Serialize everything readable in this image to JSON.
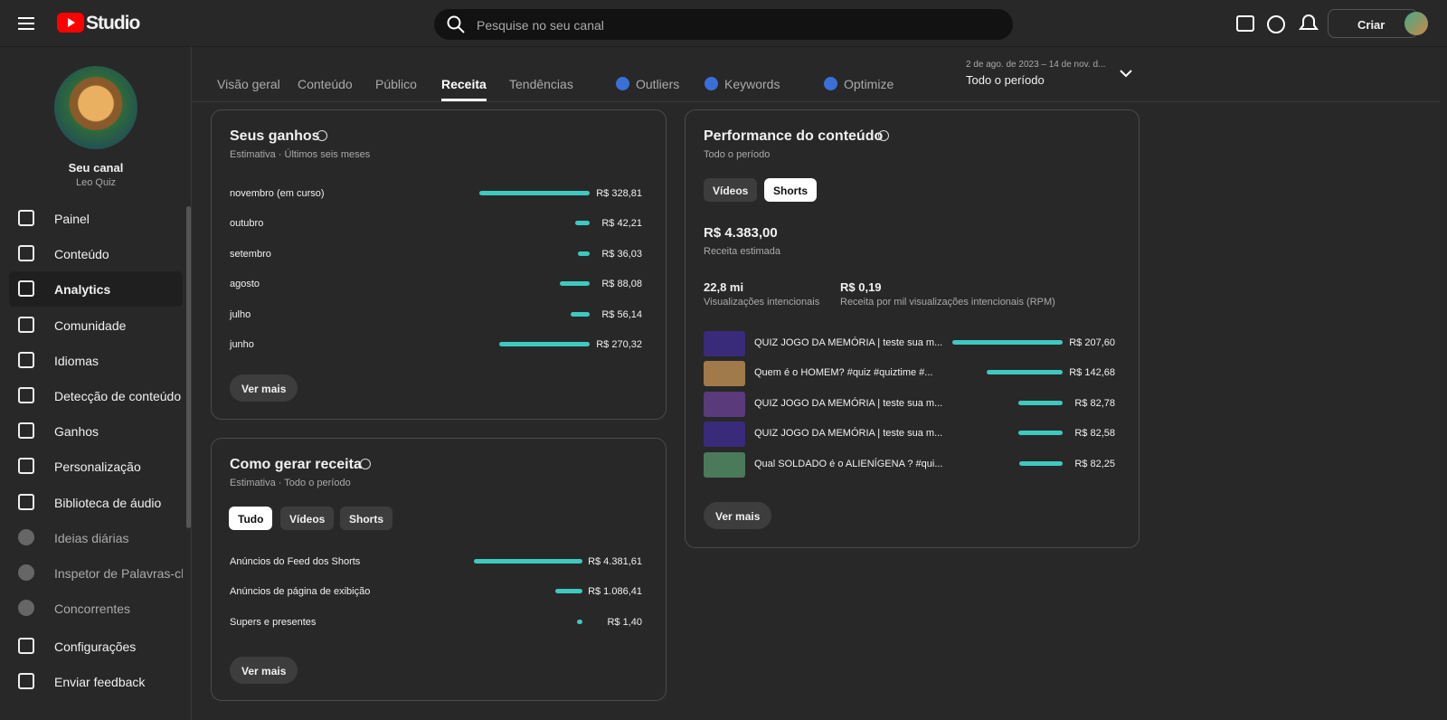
{
  "topbar": {
    "logo": "Studio",
    "search_placeholder": "Pesquise no seu canal",
    "create": "Criar"
  },
  "sidebar": {
    "channel_title": "Seu canal",
    "channel_name": "Leo Quiz",
    "items": [
      "Painel",
      "Conteúdo",
      "Analytics",
      "Comunidade",
      "Idiomas",
      "Detecção de conteúdo",
      "Ganhos",
      "Personalização",
      "Biblioteca de áudio",
      "Ideias diárias",
      "Inspetor de Palavras-chave",
      "Concorrentes",
      "Configurações",
      "Enviar feedback"
    ]
  },
  "tabs": [
    "Visão geral",
    "Conteúdo",
    "Público",
    "Receita",
    "Tendências",
    "Outliers",
    "Keywords",
    "Optimize"
  ],
  "date_range": {
    "range": "2 de ago. de 2023 – 14 de nov. d...",
    "label": "Todo o período"
  },
  "earnings": {
    "title": "Seus ganhos",
    "subtitle": "Estimativa · Últimos seis meses",
    "rows": [
      {
        "name": "novembro (em curso)",
        "value": 328.81,
        "label": "R$ 328,81"
      },
      {
        "name": "outubro",
        "value": 42.21,
        "label": "R$ 42,21"
      },
      {
        "name": "setembro",
        "value": 36.03,
        "label": "R$ 36,03"
      },
      {
        "name": "agosto",
        "value": 88.08,
        "label": "R$ 88,08"
      },
      {
        "name": "julho",
        "value": 56.14,
        "label": "R$ 56,14"
      },
      {
        "name": "junho",
        "value": 270.32,
        "label": "R$ 270,32"
      }
    ],
    "more": "Ver mais"
  },
  "revenue_sources": {
    "title": "Como gerar receita",
    "subtitle": "Estimativa · Todo o período",
    "filters": [
      "Tudo",
      "Vídeos",
      "Shorts"
    ],
    "rows": [
      {
        "name": "Anúncios do Feed dos Shorts",
        "value": 4381.61,
        "label": "R$ 4.381,61"
      },
      {
        "name": "Anúncios de página de exibição",
        "value": 1086.41,
        "label": "R$ 1.086,41"
      },
      {
        "name": "Supers e presentes",
        "value": 1.4,
        "label": "R$ 1,40"
      }
    ],
    "more": "Ver mais"
  },
  "performance": {
    "title": "Performance do conteúdo",
    "subtitle": "Todo o período",
    "filters": [
      "Vídeos",
      "Shorts"
    ],
    "total": "R$ 4.383,00",
    "total_label": "Receita estimada",
    "metrics": [
      {
        "value": "22,8 mi",
        "label": "Visualizações intencionais"
      },
      {
        "value": "R$ 0,19",
        "label": "Receita por mil visualizações intencionais (RPM)"
      }
    ],
    "rows": [
      {
        "name": "QUIZ JOGO DA MEMÓRIA | teste sua m...",
        "value": 207.6,
        "label": "R$ 207,60"
      },
      {
        "name": "Quem é o HOMEM? #quiz #quiztime #...",
        "value": 142.68,
        "label": "R$ 142,68"
      },
      {
        "name": "QUIZ JOGO DA MEMÓRIA | teste sua m...",
        "value": 82.78,
        "label": "R$ 82,78"
      },
      {
        "name": "QUIZ JOGO DA MEMÓRIA | teste sua m...",
        "value": 82.58,
        "label": "R$ 82,58"
      },
      {
        "name": "Qual SOLDADO é o ALIENÍGENA ? #qui...",
        "value": 82.25,
        "label": "R$ 82,25"
      }
    ],
    "more": "Ver mais"
  }
}
